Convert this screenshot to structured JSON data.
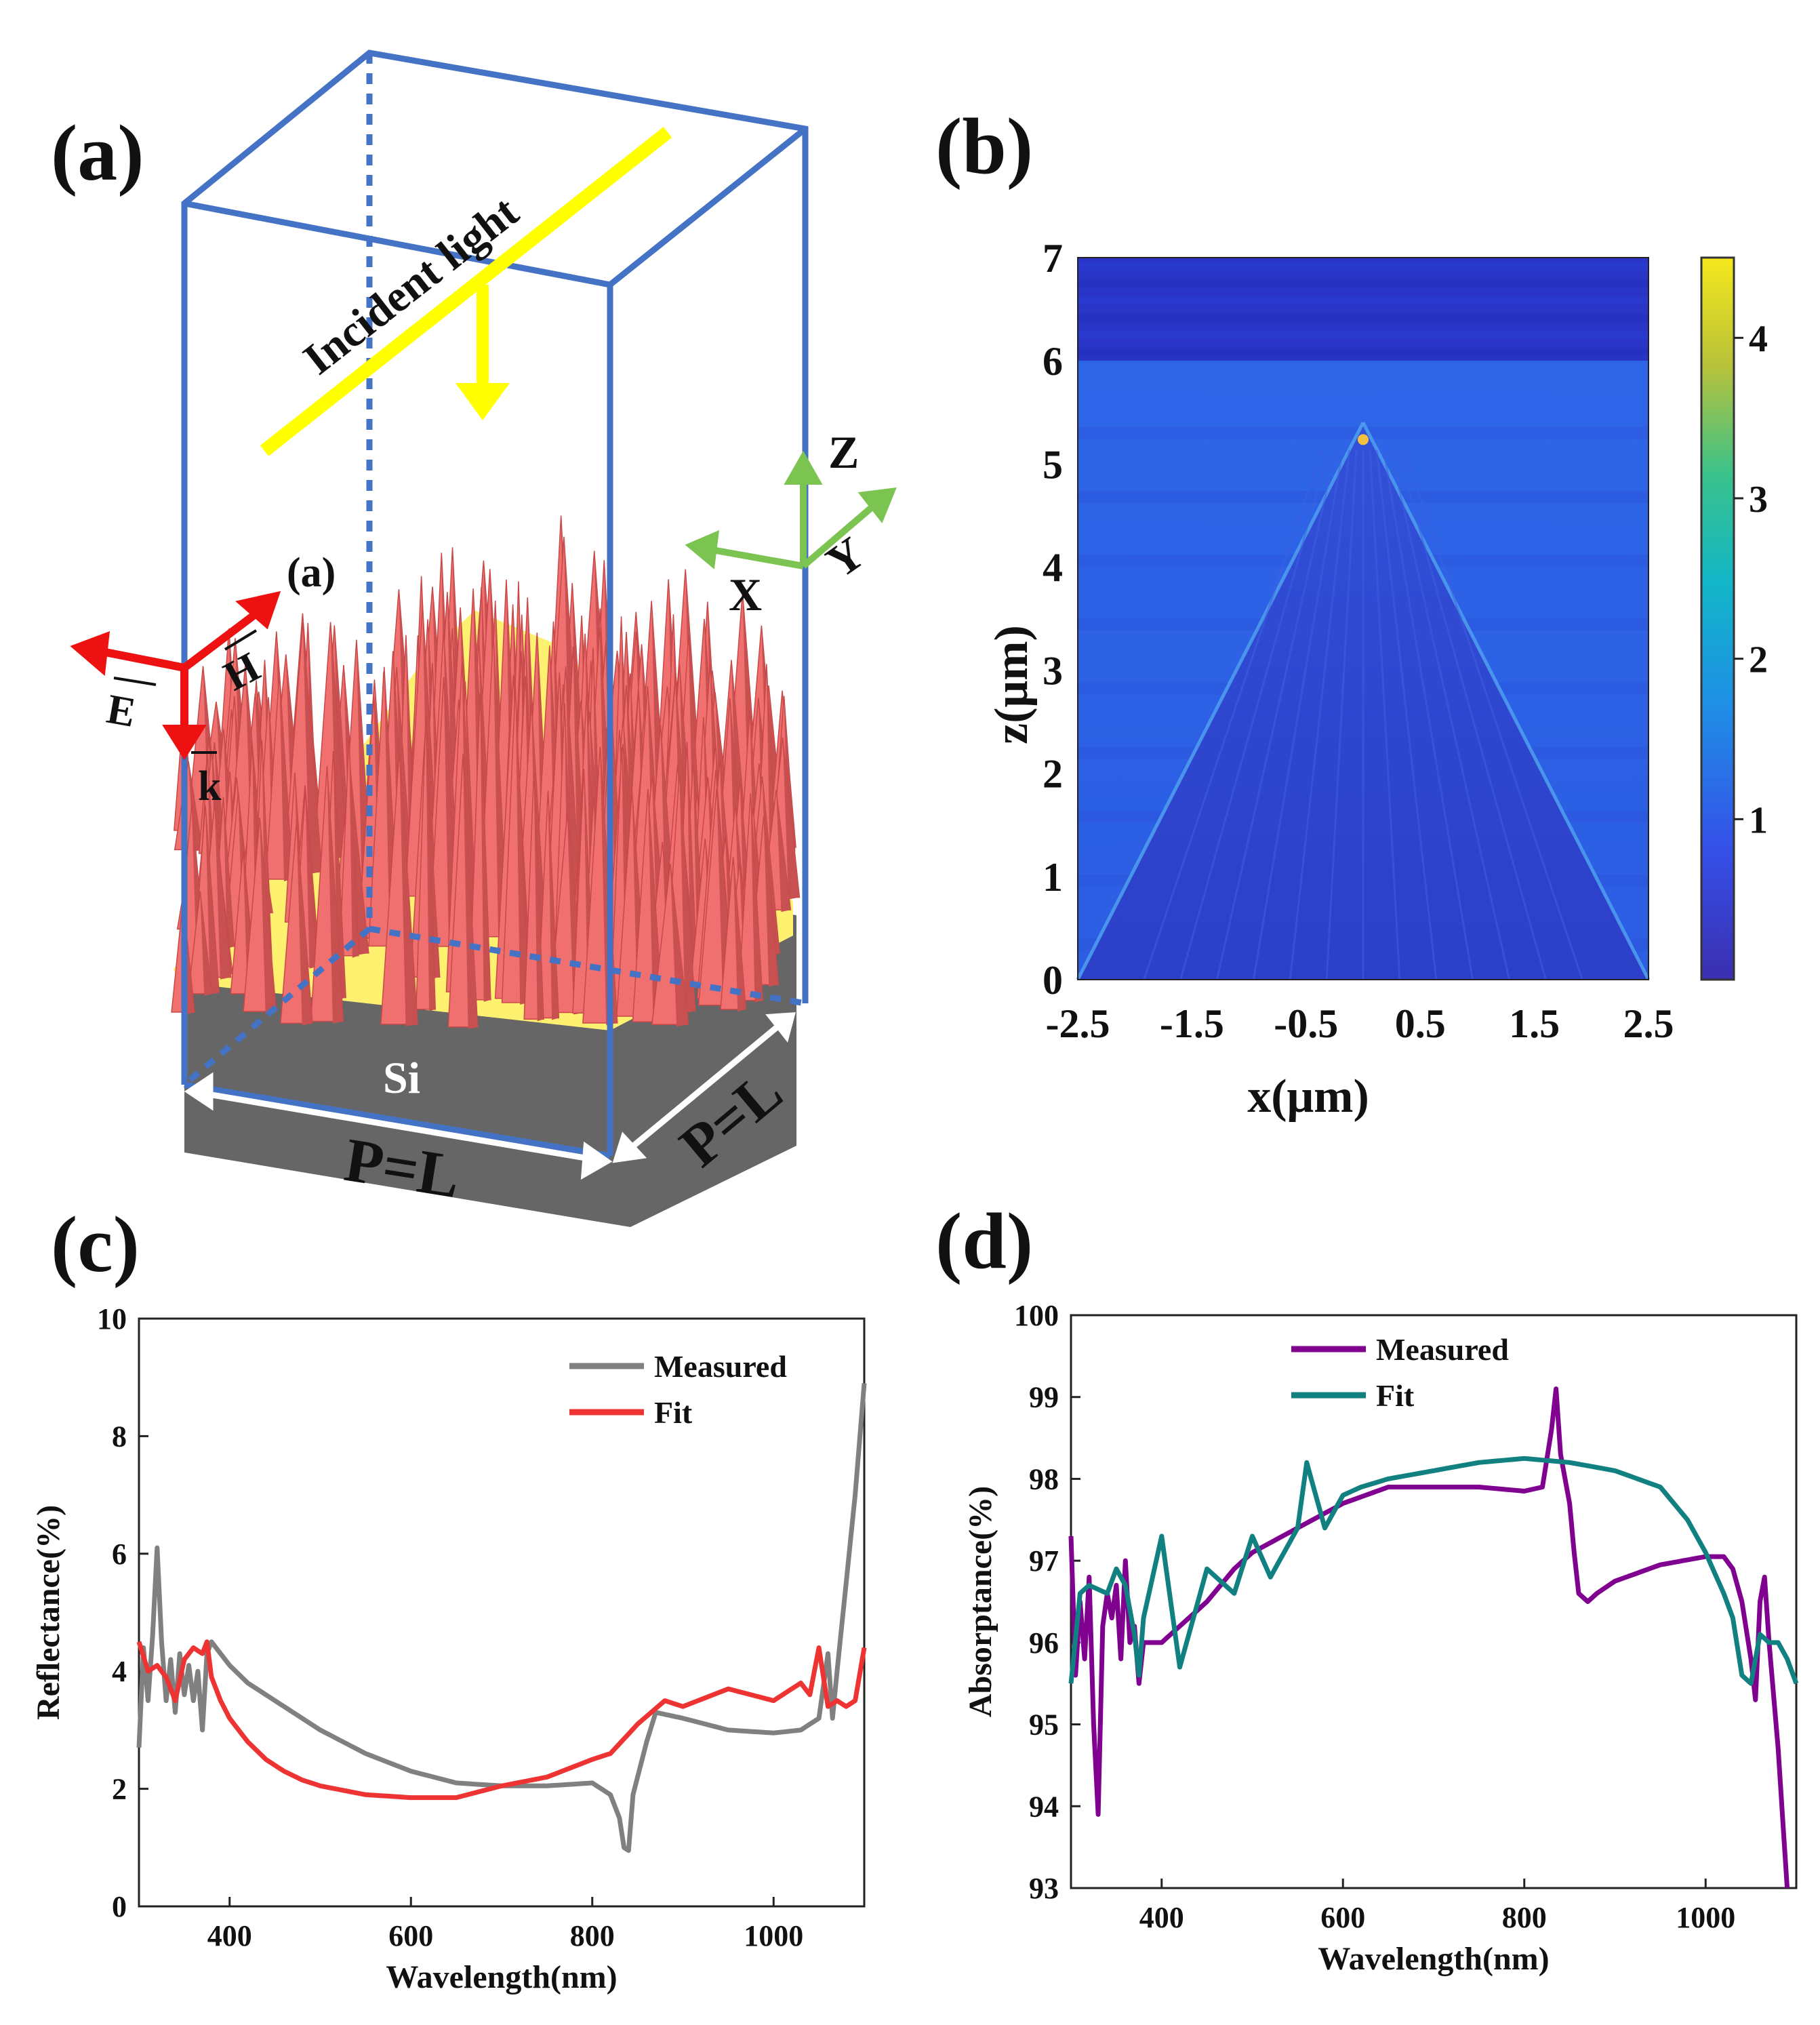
{
  "panels": {
    "a": {
      "label": "(a)",
      "inner_label": "(a)",
      "incident_light": "Incident light",
      "axes": {
        "z": "Z",
        "x": "X",
        "y": "Y"
      },
      "field": {
        "e": "E",
        "h": "H",
        "k": "k"
      },
      "substrate": "Si",
      "period_front": "P=L",
      "period_side": "P=L",
      "colors": {
        "box": "#4472c4",
        "light": "#ffff00",
        "cones": "#f07070",
        "base": "#666666",
        "field": "#ee1111",
        "axes": "#7cc452"
      }
    },
    "b": {
      "label": "(b)",
      "xlabel": "x(μm)",
      "ylabel": "z(μm)",
      "x_ticks": [
        "-2.5",
        "-1.5",
        "-0.5",
        "0.5",
        "1.5",
        "2.5"
      ],
      "y_ticks": [
        "0",
        "1",
        "2",
        "3",
        "4",
        "5",
        "6",
        "7"
      ],
      "colorbar_ticks": [
        "1",
        "2",
        "3",
        "4"
      ]
    },
    "c": {
      "label": "(c)"
    },
    "d": {
      "label": "(d)"
    }
  },
  "chart_data": [
    {
      "panel": "b",
      "type": "heatmap",
      "xlabel": "x(μm)",
      "ylabel": "z(μm)",
      "xlim": [
        -2.5,
        2.5
      ],
      "ylim": [
        0,
        7
      ],
      "colorbar_range": [
        0,
        4.5
      ],
      "colorbar_ticks": [
        1,
        2,
        3,
        4
      ],
      "structure_apex": [
        0,
        5.4
      ],
      "structure_base": [
        -2.5,
        2.5
      ],
      "background_level": 1.0,
      "top_band": [
        6.0,
        7.0
      ],
      "top_band_level": 0.35,
      "inside_level": 0.4
    },
    {
      "panel": "c",
      "type": "line",
      "xlabel": "Wavelength(nm)",
      "ylabel": "Reflectance(%)",
      "xlim": [
        300,
        1100
      ],
      "ylim": [
        0,
        10
      ],
      "x_ticks": [
        400,
        600,
        800,
        1000
      ],
      "y_ticks": [
        0,
        2,
        4,
        6,
        8,
        10
      ],
      "legend_position": "top-right",
      "series": [
        {
          "name": "Measured",
          "color": "#808080",
          "points": [
            [
              300,
              2.7
            ],
            [
              305,
              4.4
            ],
            [
              310,
              3.5
            ],
            [
              315,
              4.6
            ],
            [
              320,
              6.1
            ],
            [
              325,
              4.5
            ],
            [
              330,
              3.5
            ],
            [
              335,
              4.2
            ],
            [
              340,
              3.3
            ],
            [
              345,
              4.3
            ],
            [
              350,
              3.6
            ],
            [
              355,
              4.1
            ],
            [
              360,
              3.5
            ],
            [
              365,
              4.0
            ],
            [
              370,
              3.0
            ],
            [
              375,
              4.3
            ],
            [
              380,
              4.5
            ],
            [
              400,
              4.1
            ],
            [
              420,
              3.8
            ],
            [
              450,
              3.5
            ],
            [
              480,
              3.2
            ],
            [
              500,
              3.0
            ],
            [
              550,
              2.6
            ],
            [
              600,
              2.3
            ],
            [
              650,
              2.1
            ],
            [
              700,
              2.05
            ],
            [
              750,
              2.05
            ],
            [
              800,
              2.1
            ],
            [
              820,
              1.9
            ],
            [
              830,
              1.5
            ],
            [
              835,
              1.0
            ],
            [
              840,
              0.95
            ],
            [
              845,
              1.9
            ],
            [
              850,
              2.2
            ],
            [
              860,
              2.8
            ],
            [
              870,
              3.3
            ],
            [
              900,
              3.2
            ],
            [
              950,
              3.0
            ],
            [
              1000,
              2.95
            ],
            [
              1030,
              3.0
            ],
            [
              1050,
              3.2
            ],
            [
              1060,
              4.3
            ],
            [
              1065,
              3.2
            ],
            [
              1070,
              4.0
            ],
            [
              1080,
              5.5
            ],
            [
              1090,
              7.0
            ],
            [
              1100,
              8.9
            ]
          ]
        },
        {
          "name": "Fit",
          "color": "#ee3333",
          "points": [
            [
              300,
              4.5
            ],
            [
              310,
              4.0
            ],
            [
              320,
              4.1
            ],
            [
              330,
              3.9
            ],
            [
              340,
              3.5
            ],
            [
              350,
              4.2
            ],
            [
              360,
              4.4
            ],
            [
              370,
              4.3
            ],
            [
              375,
              4.5
            ],
            [
              380,
              3.9
            ],
            [
              390,
              3.5
            ],
            [
              400,
              3.2
            ],
            [
              420,
              2.8
            ],
            [
              440,
              2.5
            ],
            [
              460,
              2.3
            ],
            [
              480,
              2.15
            ],
            [
              500,
              2.05
            ],
            [
              550,
              1.9
            ],
            [
              600,
              1.85
            ],
            [
              650,
              1.85
            ],
            [
              700,
              2.05
            ],
            [
              750,
              2.2
            ],
            [
              800,
              2.5
            ],
            [
              820,
              2.6
            ],
            [
              850,
              3.1
            ],
            [
              880,
              3.5
            ],
            [
              900,
              3.4
            ],
            [
              950,
              3.7
            ],
            [
              1000,
              3.5
            ],
            [
              1030,
              3.8
            ],
            [
              1040,
              3.6
            ],
            [
              1050,
              4.4
            ],
            [
              1060,
              3.4
            ],
            [
              1070,
              3.5
            ],
            [
              1080,
              3.4
            ],
            [
              1090,
              3.5
            ],
            [
              1100,
              4.4
            ]
          ]
        }
      ]
    },
    {
      "panel": "d",
      "type": "line",
      "xlabel": "Wavelength(nm)",
      "ylabel": "Absorptance(%)",
      "xlim": [
        300,
        1100
      ],
      "ylim": [
        93,
        100
      ],
      "x_ticks": [
        400,
        600,
        800,
        1000
      ],
      "y_ticks": [
        93,
        94,
        95,
        96,
        97,
        98,
        99,
        100
      ],
      "legend_position": "top-center",
      "series": [
        {
          "name": "Measured",
          "color": "#800090",
          "points": [
            [
              300,
              97.3
            ],
            [
              305,
              95.6
            ],
            [
              310,
              96.5
            ],
            [
              315,
              95.8
            ],
            [
              320,
              96.8
            ],
            [
              325,
              95.0
            ],
            [
              330,
              93.9
            ],
            [
              335,
              96.2
            ],
            [
              340,
              96.6
            ],
            [
              345,
              96.3
            ],
            [
              350,
              96.7
            ],
            [
              355,
              95.8
            ],
            [
              360,
              97.0
            ],
            [
              365,
              96.0
            ],
            [
              370,
              96.2
            ],
            [
              375,
              95.5
            ],
            [
              380,
              96.0
            ],
            [
              400,
              96.0
            ],
            [
              420,
              96.2
            ],
            [
              450,
              96.5
            ],
            [
              480,
              96.9
            ],
            [
              500,
              97.1
            ],
            [
              550,
              97.4
            ],
            [
              600,
              97.7
            ],
            [
              650,
              97.9
            ],
            [
              700,
              97.9
            ],
            [
              750,
              97.9
            ],
            [
              800,
              97.85
            ],
            [
              820,
              97.9
            ],
            [
              830,
              98.6
            ],
            [
              835,
              99.1
            ],
            [
              840,
              98.3
            ],
            [
              850,
              97.7
            ],
            [
              855,
              97.1
            ],
            [
              860,
              96.6
            ],
            [
              870,
              96.5
            ],
            [
              880,
              96.6
            ],
            [
              900,
              96.75
            ],
            [
              950,
              96.95
            ],
            [
              1000,
              97.05
            ],
            [
              1020,
              97.05
            ],
            [
              1030,
              96.9
            ],
            [
              1040,
              96.5
            ],
            [
              1050,
              95.8
            ],
            [
              1055,
              95.3
            ],
            [
              1060,
              96.5
            ],
            [
              1065,
              96.8
            ],
            [
              1070,
              96.0
            ],
            [
              1080,
              94.7
            ],
            [
              1090,
              93.0
            ]
          ]
        },
        {
          "name": "Fit",
          "color": "#108080",
          "points": [
            [
              300,
              95.5
            ],
            [
              310,
              96.6
            ],
            [
              320,
              96.7
            ],
            [
              340,
              96.6
            ],
            [
              350,
              96.9
            ],
            [
              360,
              96.7
            ],
            [
              370,
              96.1
            ],
            [
              375,
              95.6
            ],
            [
              380,
              96.3
            ],
            [
              400,
              97.3
            ],
            [
              410,
              96.5
            ],
            [
              420,
              95.7
            ],
            [
              450,
              96.9
            ],
            [
              480,
              96.6
            ],
            [
              500,
              97.3
            ],
            [
              520,
              96.8
            ],
            [
              550,
              97.4
            ],
            [
              560,
              98.2
            ],
            [
              580,
              97.4
            ],
            [
              600,
              97.8
            ],
            [
              620,
              97.9
            ],
            [
              650,
              98.0
            ],
            [
              700,
              98.1
            ],
            [
              750,
              98.2
            ],
            [
              800,
              98.25
            ],
            [
              850,
              98.2
            ],
            [
              900,
              98.1
            ],
            [
              950,
              97.9
            ],
            [
              980,
              97.5
            ],
            [
              1000,
              97.1
            ],
            [
              1020,
              96.6
            ],
            [
              1030,
              96.3
            ],
            [
              1040,
              95.6
            ],
            [
              1050,
              95.5
            ],
            [
              1060,
              96.1
            ],
            [
              1070,
              96.0
            ],
            [
              1080,
              96.0
            ],
            [
              1090,
              95.8
            ],
            [
              1100,
              95.5
            ]
          ]
        }
      ]
    }
  ]
}
